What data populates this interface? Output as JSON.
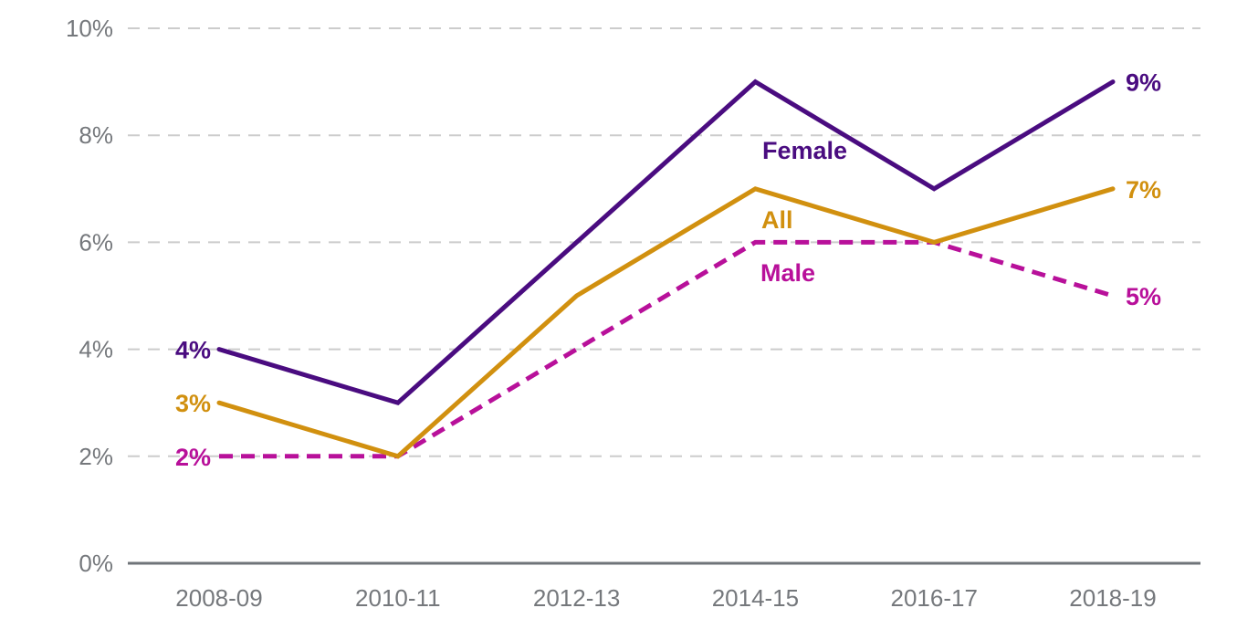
{
  "chart_data": {
    "type": "line",
    "title": "",
    "xlabel": "",
    "ylabel": "",
    "categories": [
      "2008-09",
      "2010-11",
      "2012-13",
      "2014-15",
      "2016-17",
      "2018-19"
    ],
    "series": [
      {
        "name": "Female",
        "values": [
          4,
          3,
          6,
          9,
          7,
          9
        ],
        "color": "#4A0C80",
        "line_style": "solid",
        "start_label": "4%",
        "end_label": "9%"
      },
      {
        "name": "All",
        "values": [
          3,
          2,
          5,
          7,
          6,
          7
        ],
        "color": "#D1900F",
        "line_style": "solid",
        "start_label": "3%",
        "end_label": "7%"
      },
      {
        "name": "Male",
        "values": [
          2,
          2,
          4,
          6,
          6,
          5
        ],
        "color": "#B8109A",
        "line_style": "dashed",
        "start_label": "2%",
        "end_label": "5%"
      }
    ],
    "y_axis": {
      "range": [
        0,
        10
      ],
      "ticks": [
        {
          "value": 0,
          "label": "0%"
        },
        {
          "value": 2,
          "label": "2%"
        },
        {
          "value": 4,
          "label": "4%"
        },
        {
          "value": 6,
          "label": "6%"
        },
        {
          "value": 8,
          "label": "8%"
        },
        {
          "value": 10,
          "label": "10%"
        }
      ],
      "gridlines": "dashed horizontal at 2,4,6,8,10; solid baseline at 0"
    },
    "legend_position": "inline labels beside lines"
  },
  "colors": {
    "background": "#FFFFFF",
    "axis_text": "#75787C",
    "axis_line": "#6F7479",
    "gridline": "#CCCCCC"
  }
}
